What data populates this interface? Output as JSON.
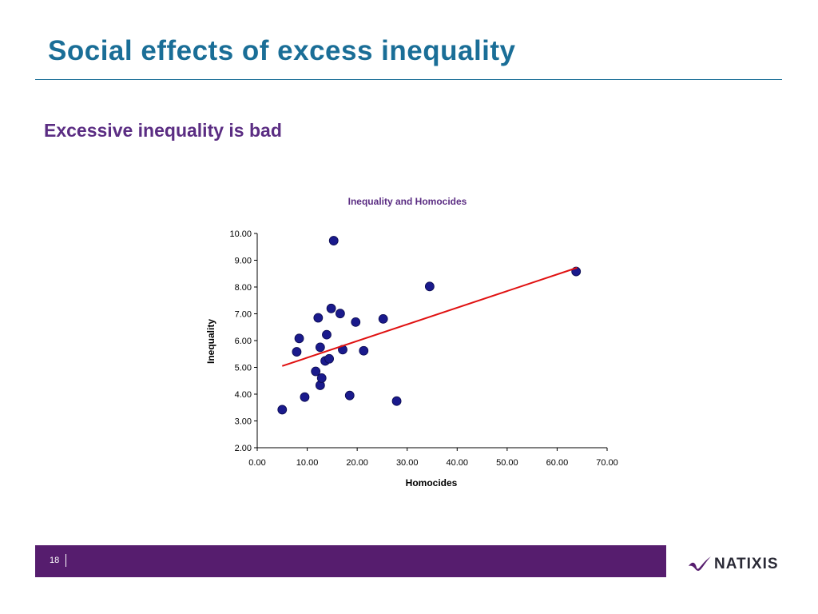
{
  "slide": {
    "title": "Social effects of excess inequality",
    "subtitle": "Excessive inequality is bad",
    "page_number": "18"
  },
  "brand": {
    "logo_text": "NATIXIS",
    "title_color": "#1a6e97",
    "accent_color": "#561d6e"
  },
  "chart_data": {
    "type": "scatter",
    "title": "Inequality and Homocides",
    "xlabel": "Homocides",
    "ylabel": "Inequality",
    "xlim": [
      0,
      70
    ],
    "ylim": [
      2,
      10
    ],
    "x_ticks": [
      "0.00",
      "10.00",
      "20.00",
      "30.00",
      "40.00",
      "50.00",
      "60.00",
      "70.00"
    ],
    "y_ticks": [
      "2.00",
      "3.00",
      "4.00",
      "5.00",
      "6.00",
      "7.00",
      "8.00",
      "9.00",
      "10.00"
    ],
    "grid": false,
    "marker_color": "#1a1a8c",
    "trendline_color": "#e01010",
    "points": [
      {
        "x": 5.0,
        "y": 3.42
      },
      {
        "x": 7.9,
        "y": 5.58
      },
      {
        "x": 8.4,
        "y": 6.08
      },
      {
        "x": 9.5,
        "y": 3.89
      },
      {
        "x": 11.7,
        "y": 4.85
      },
      {
        "x": 12.2,
        "y": 6.85
      },
      {
        "x": 12.6,
        "y": 5.75
      },
      {
        "x": 12.6,
        "y": 4.33
      },
      {
        "x": 12.9,
        "y": 4.6
      },
      {
        "x": 13.6,
        "y": 5.24
      },
      {
        "x": 13.9,
        "y": 6.22
      },
      {
        "x": 14.4,
        "y": 5.32
      },
      {
        "x": 14.8,
        "y": 7.2
      },
      {
        "x": 15.3,
        "y": 9.73
      },
      {
        "x": 16.6,
        "y": 7.01
      },
      {
        "x": 17.1,
        "y": 5.66
      },
      {
        "x": 18.5,
        "y": 3.95
      },
      {
        "x": 19.7,
        "y": 6.69
      },
      {
        "x": 21.3,
        "y": 5.62
      },
      {
        "x": 25.2,
        "y": 6.81
      },
      {
        "x": 27.9,
        "y": 3.74
      },
      {
        "x": 34.5,
        "y": 8.02
      },
      {
        "x": 63.8,
        "y": 8.58
      }
    ],
    "trendline": {
      "x": [
        5.0,
        64.0
      ],
      "y": [
        5.05,
        8.72
      ]
    }
  }
}
